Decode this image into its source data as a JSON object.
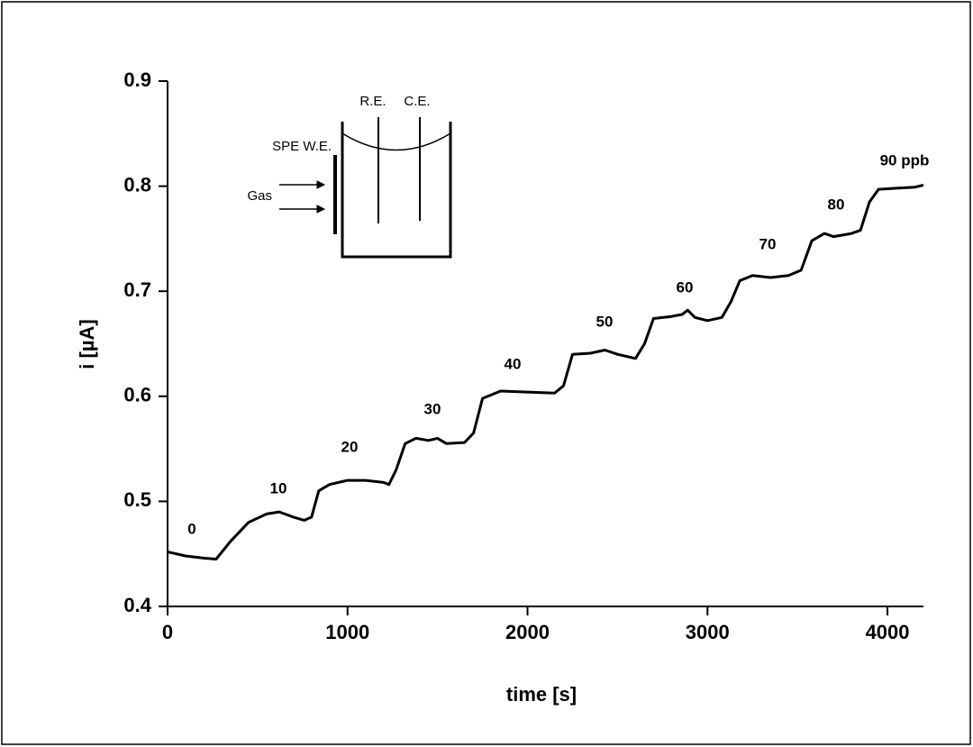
{
  "chart_data": {
    "type": "line",
    "xlabel": "time [s]",
    "ylabel": "i [µA]",
    "xlim": [
      0,
      4200
    ],
    "ylim": [
      0.4,
      0.9
    ],
    "xticks": [
      0,
      1000,
      2000,
      3000,
      4000
    ],
    "yticks": [
      0.4,
      0.5,
      0.6,
      0.7,
      0.8,
      0.9
    ],
    "series": [
      {
        "color": "#000000",
        "x": [
          0,
          100,
          200,
          270,
          350,
          450,
          550,
          620,
          700,
          760,
          800,
          840,
          900,
          1000,
          1100,
          1200,
          1230,
          1270,
          1320,
          1380,
          1450,
          1500,
          1550,
          1650,
          1700,
          1750,
          1850,
          2000,
          2150,
          2200,
          2250,
          2350,
          2430,
          2500,
          2600,
          2650,
          2700,
          2800,
          2860,
          2890,
          2930,
          3000,
          3080,
          3130,
          3180,
          3250,
          3350,
          3450,
          3520,
          3580,
          3650,
          3700,
          3800,
          3850,
          3900,
          3950,
          4050,
          4150,
          4200
        ],
        "values": [
          0.452,
          0.448,
          0.446,
          0.445,
          0.462,
          0.48,
          0.488,
          0.49,
          0.485,
          0.482,
          0.485,
          0.51,
          0.516,
          0.52,
          0.52,
          0.518,
          0.516,
          0.53,
          0.555,
          0.56,
          0.558,
          0.56,
          0.555,
          0.556,
          0.565,
          0.598,
          0.605,
          0.604,
          0.603,
          0.61,
          0.64,
          0.641,
          0.644,
          0.64,
          0.636,
          0.65,
          0.674,
          0.676,
          0.678,
          0.682,
          0.675,
          0.672,
          0.675,
          0.69,
          0.71,
          0.715,
          0.713,
          0.715,
          0.72,
          0.748,
          0.755,
          0.752,
          0.755,
          0.758,
          0.785,
          0.797,
          0.798,
          0.799,
          0.801
        ]
      }
    ],
    "annotations": [
      "0",
      "10",
      "20",
      "30",
      "40",
      "50",
      "60",
      "70",
      "80",
      "90 ppb"
    ],
    "inset_labels": [
      "R.E.",
      "C.E.",
      "SPE W.E.",
      "Gas"
    ]
  }
}
